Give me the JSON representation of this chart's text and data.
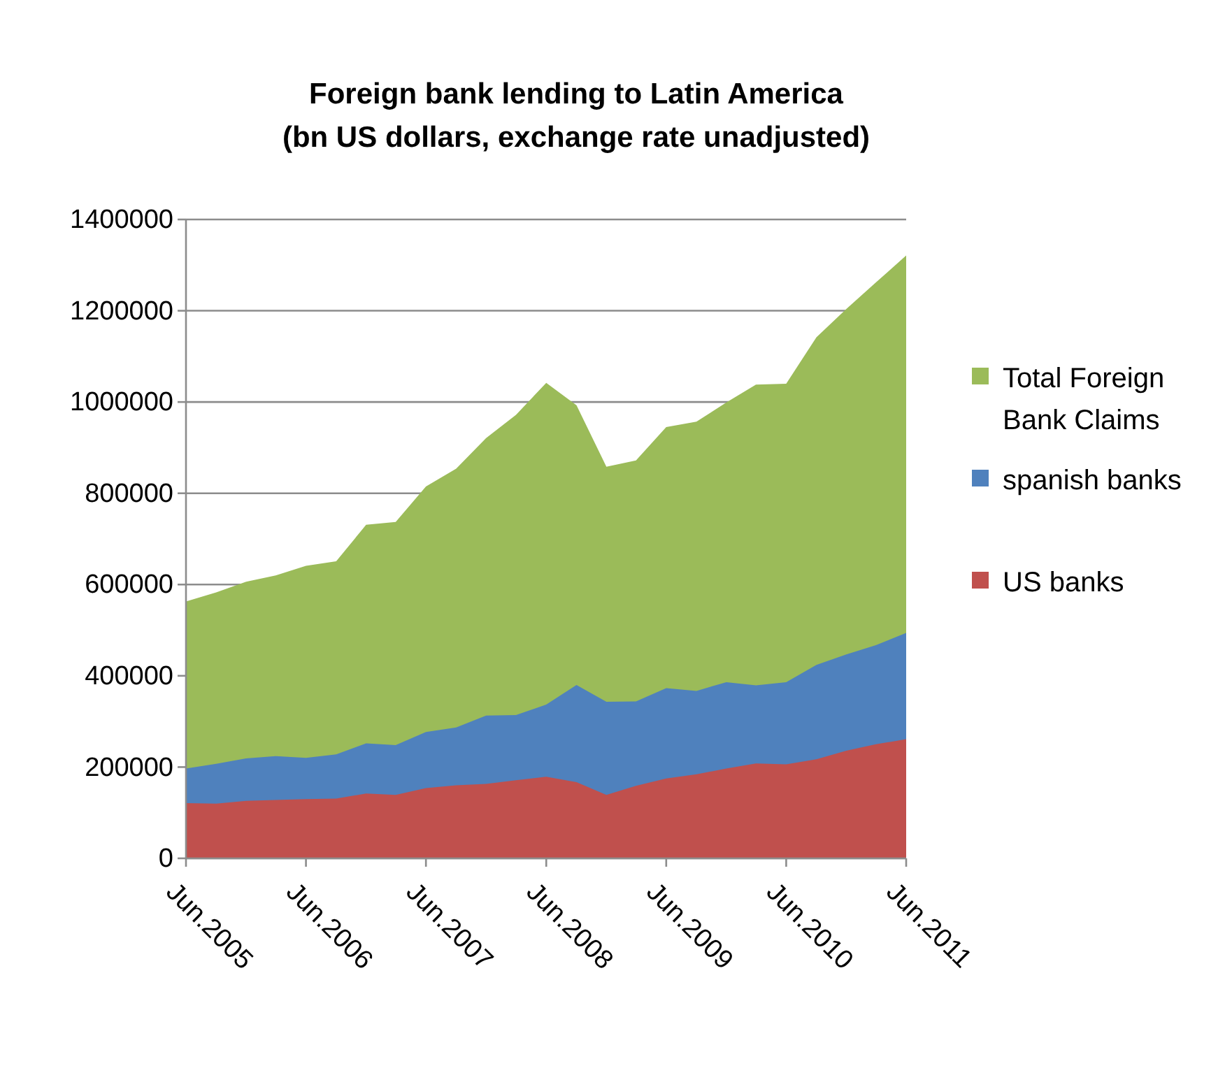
{
  "chart_data": {
    "type": "area",
    "title": "Foreign bank lending to Latin America",
    "subtitle": "(bn US dollars, exchange rate unadjusted)",
    "x": [
      "2005-06",
      "2005-09",
      "2005-12",
      "2006-03",
      "2006-06",
      "2006-09",
      "2006-12",
      "2007-03",
      "2007-06",
      "2007-09",
      "2007-12",
      "2008-03",
      "2008-06",
      "2008-09",
      "2008-12",
      "2009-03",
      "2009-06",
      "2009-09",
      "2009-12",
      "2010-03",
      "2010-06",
      "2010-09",
      "2010-12",
      "2011-03",
      "2011-06"
    ],
    "series": [
      {
        "name": "Total Foreign Bank Claims",
        "color": "#9bbb59",
        "values": [
          563000,
          583000,
          606000,
          620000,
          641000,
          651000,
          731000,
          737000,
          815000,
          854000,
          921000,
          972000,
          1042000,
          993000,
          858000,
          872000,
          945000,
          957000,
          999000,
          1038000,
          1040000,
          1142000,
          1204000,
          1262000,
          1321000
        ]
      },
      {
        "name": "spanish banks",
        "color": "#4f81bd",
        "values": [
          197000,
          207000,
          219000,
          224000,
          220000,
          228000,
          252000,
          248000,
          277000,
          287000,
          313000,
          314000,
          337000,
          380000,
          343000,
          344000,
          373000,
          367000,
          386000,
          379000,
          386000,
          424000,
          447000,
          467000,
          494000
        ]
      },
      {
        "name": "US banks",
        "color": "#c0504d",
        "values": [
          121000,
          120000,
          126000,
          128000,
          130000,
          131000,
          142000,
          139000,
          154000,
          160000,
          163000,
          171000,
          179000,
          167000,
          139000,
          159000,
          175000,
          184000,
          197000,
          208000,
          206000,
          217000,
          236000,
          250000,
          261000
        ]
      }
    ],
    "xlim": [
      "2005-06",
      "2011-06"
    ],
    "xticks": [
      {
        "value": "2005-06",
        "label": "Jun.2005"
      },
      {
        "value": "2006-06",
        "label": "Jun.2006"
      },
      {
        "value": "2007-06",
        "label": "Jun.2007"
      },
      {
        "value": "2008-06",
        "label": "Jun.2008"
      },
      {
        "value": "2009-06",
        "label": "Jun.2009"
      },
      {
        "value": "2010-06",
        "label": "Jun.2010"
      },
      {
        "value": "2011-06",
        "label": "Jun.2011"
      }
    ],
    "ylim": [
      0,
      1400000
    ],
    "yticks": [
      0,
      200000,
      400000,
      600000,
      800000,
      1000000,
      1200000,
      1400000
    ],
    "grid": "y",
    "legend": "right"
  }
}
